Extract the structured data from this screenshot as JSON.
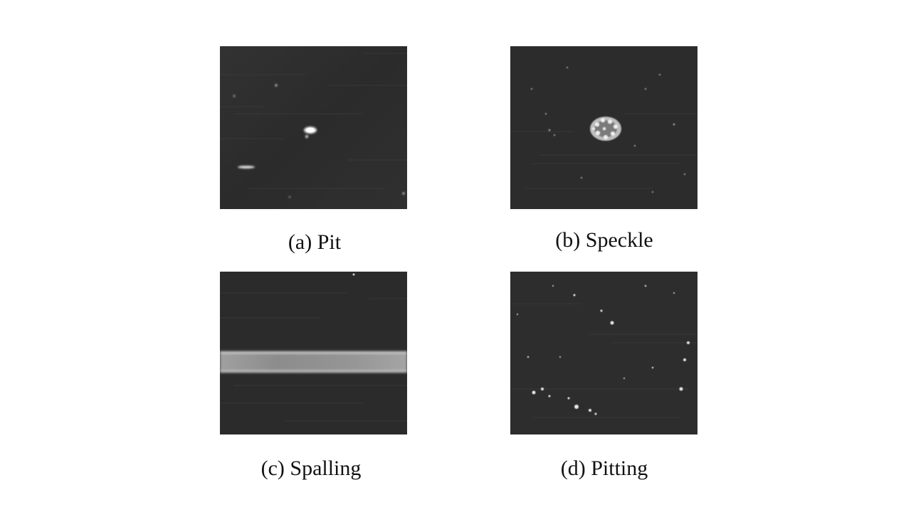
{
  "panels": [
    {
      "id": "a",
      "caption": "(a) Pit"
    },
    {
      "id": "b",
      "caption": "(b) Speckle"
    },
    {
      "id": "c",
      "caption": "(c) Spalling"
    },
    {
      "id": "d",
      "caption": "(d) Pitting"
    }
  ],
  "colors": {
    "surface": "#2e2e2e",
    "defect": "#f2f2f2",
    "background": "#ffffff"
  }
}
